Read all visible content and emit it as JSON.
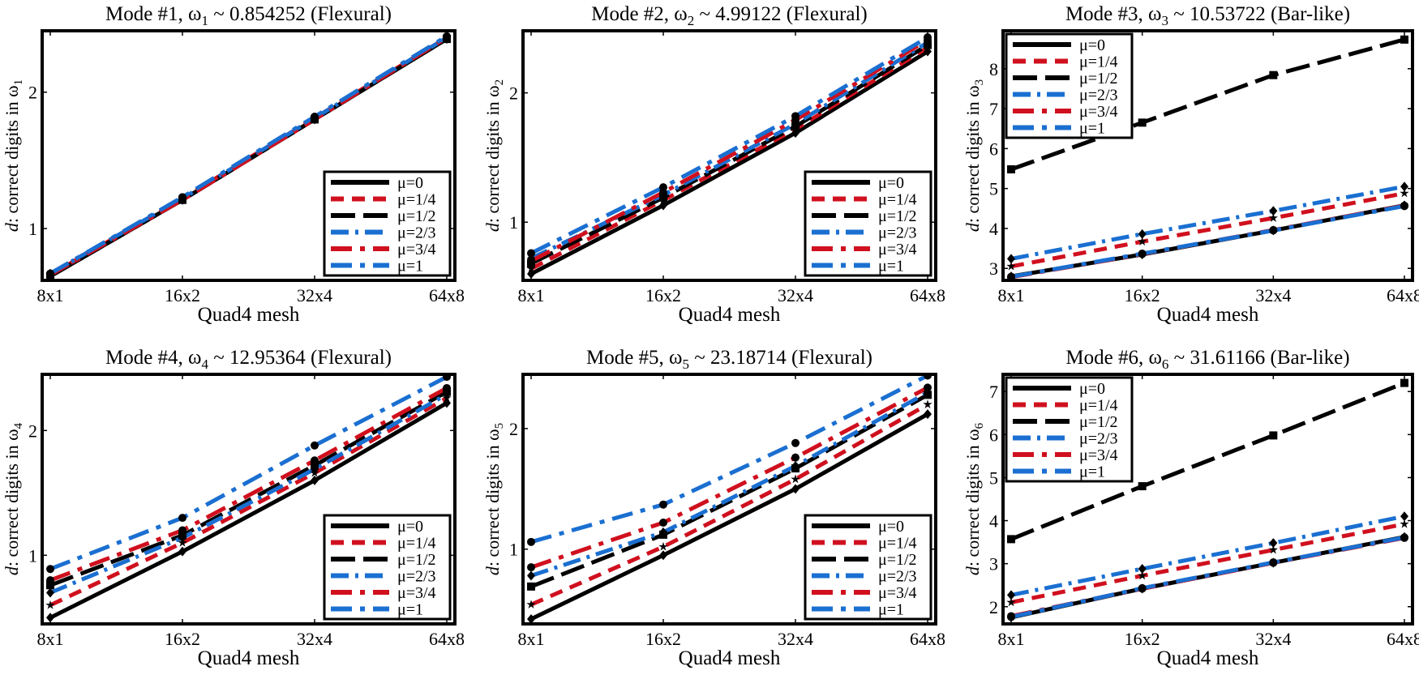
{
  "colors": {
    "black": "#000000",
    "red": "#d0101e",
    "blue": "#1a6fd1"
  },
  "legend_labels": [
    "μ=0",
    "μ=1/4",
    "μ=1/2",
    "μ=2/3",
    "μ=3/4",
    "μ=1"
  ],
  "xlabel": "Quad4 mesh",
  "ylabel_prefix": "d",
  "ylabel_text": ": correct digits in ω",
  "chart_data": [
    {
      "type": "line",
      "title_pre": "Mode #1, ω",
      "title_sub": "1",
      "title_post": " ~ 0.854252 (Flexural)",
      "ylabel_sub": "1",
      "categories": [
        "8x1",
        "16x2",
        "32x4",
        "64x8"
      ],
      "ylim": [
        0.62,
        2.45
      ],
      "yticks": [
        1,
        2
      ],
      "legend_position": "bottom-right",
      "series": [
        {
          "name": "μ=0",
          "values": [
            0.65,
            1.21,
            1.8,
            2.39
          ]
        },
        {
          "name": "μ=1/4",
          "values": [
            0.66,
            1.22,
            1.81,
            2.4
          ]
        },
        {
          "name": "μ=1/2",
          "values": [
            0.65,
            1.21,
            1.8,
            2.39
          ]
        },
        {
          "name": "μ=2/3",
          "values": [
            0.67,
            1.22,
            1.81,
            2.4
          ]
        },
        {
          "name": "μ=3/4",
          "values": [
            0.66,
            1.21,
            1.8,
            2.4
          ]
        },
        {
          "name": "μ=1",
          "values": [
            0.67,
            1.23,
            1.82,
            2.41
          ]
        }
      ]
    },
    {
      "type": "line",
      "title_pre": "Mode #2, ω",
      "title_sub": "2",
      "title_post": " ~ 4.99122 (Flexural)",
      "ylabel_sub": "2",
      "categories": [
        "8x1",
        "16x2",
        "32x4",
        "64x8"
      ],
      "ylim": [
        0.55,
        2.48
      ],
      "yticks": [
        1,
        2
      ],
      "legend_position": "bottom-right",
      "series": [
        {
          "name": "μ=0",
          "values": [
            0.6,
            1.13,
            1.69,
            2.32
          ]
        },
        {
          "name": "μ=1/4",
          "values": [
            0.64,
            1.17,
            1.72,
            2.35
          ]
        },
        {
          "name": "μ=1/2",
          "values": [
            0.68,
            1.19,
            1.74,
            2.37
          ]
        },
        {
          "name": "μ=2/3",
          "values": [
            0.72,
            1.21,
            1.76,
            2.39
          ]
        },
        {
          "name": "μ=3/4",
          "values": [
            0.7,
            1.23,
            1.79,
            2.41
          ]
        },
        {
          "name": "μ=1",
          "values": [
            0.76,
            1.27,
            1.82,
            2.43
          ]
        }
      ]
    },
    {
      "type": "line",
      "title_pre": "Mode #3, ω",
      "title_sub": "3",
      "title_post": " ~ 10.53722 (Bar-like)",
      "ylabel_sub": "3",
      "categories": [
        "8x1",
        "16x2",
        "32x4",
        "64x8"
      ],
      "ylim": [
        2.7,
        8.95
      ],
      "yticks": [
        3,
        4,
        5,
        6,
        7,
        8
      ],
      "legend_position": "top-left",
      "series": [
        {
          "name": "μ=0",
          "values": [
            2.8,
            3.35,
            3.95,
            4.58
          ]
        },
        {
          "name": "μ=1/4",
          "values": [
            3.05,
            3.67,
            4.26,
            4.88
          ]
        },
        {
          "name": "μ=1/2",
          "values": [
            5.48,
            6.65,
            7.84,
            8.73
          ]
        },
        {
          "name": "μ=2/3",
          "values": [
            3.24,
            3.86,
            4.44,
            5.05
          ]
        },
        {
          "name": "μ=3/4",
          "values": [
            2.78,
            3.36,
            3.96,
            4.57
          ]
        },
        {
          "name": "μ=1",
          "values": [
            2.79,
            3.37,
            3.95,
            4.56
          ]
        }
      ]
    },
    {
      "type": "line",
      "title_pre": "Mode #4, ω",
      "title_sub": "4",
      "title_post": " ~ 12.95364 (Flexural)",
      "ylabel_sub": "4",
      "categories": [
        "8x1",
        "16x2",
        "32x4",
        "64x8"
      ],
      "ylim": [
        0.45,
        2.45
      ],
      "yticks": [
        1,
        2
      ],
      "legend_position": "bottom-right",
      "series": [
        {
          "name": "μ=0",
          "values": [
            0.5,
            1.03,
            1.6,
            2.22
          ]
        },
        {
          "name": "μ=1/4",
          "values": [
            0.6,
            1.1,
            1.66,
            2.26
          ]
        },
        {
          "name": "μ=1/2",
          "values": [
            0.76,
            1.16,
            1.72,
            2.31
          ]
        },
        {
          "name": "μ=2/3",
          "values": [
            0.7,
            1.14,
            1.69,
            2.29
          ]
        },
        {
          "name": "μ=3/4",
          "values": [
            0.8,
            1.2,
            1.76,
            2.34
          ]
        },
        {
          "name": "μ=1",
          "values": [
            0.89,
            1.3,
            1.88,
            2.43
          ]
        }
      ]
    },
    {
      "type": "line",
      "title_pre": "Mode #5, ω",
      "title_sub": "5",
      "title_post": " ~ 23.18714  (Flexural)",
      "ylabel_sub": "5",
      "categories": [
        "8x1",
        "16x2",
        "32x4",
        "64x8"
      ],
      "ylim": [
        0.38,
        2.45
      ],
      "yticks": [
        1,
        2
      ],
      "legend_position": "bottom-right",
      "series": [
        {
          "name": "μ=0",
          "values": [
            0.42,
            0.95,
            1.5,
            2.12
          ]
        },
        {
          "name": "μ=1/4",
          "values": [
            0.54,
            1.02,
            1.58,
            2.2
          ]
        },
        {
          "name": "μ=1/2",
          "values": [
            0.69,
            1.12,
            1.67,
            2.28
          ]
        },
        {
          "name": "μ=2/3",
          "values": [
            0.78,
            1.14,
            1.69,
            2.3
          ]
        },
        {
          "name": "μ=3/4",
          "values": [
            0.85,
            1.22,
            1.76,
            2.34
          ]
        },
        {
          "name": "μ=1",
          "values": [
            1.06,
            1.37,
            1.88,
            2.44
          ]
        }
      ]
    },
    {
      "type": "line",
      "title_pre": "Mode #6, ω",
      "title_sub": "6",
      "title_post": " ~ 31.61166  (Bar-like)",
      "ylabel_sub": "6",
      "categories": [
        "8x1",
        "16x2",
        "32x4",
        "64x8"
      ],
      "ylim": [
        1.6,
        7.4
      ],
      "yticks": [
        2,
        3,
        4,
        5,
        6,
        7
      ],
      "legend_position": "top-left",
      "series": [
        {
          "name": "μ=0",
          "values": [
            1.75,
            2.42,
            3.02,
            3.62
          ]
        },
        {
          "name": "μ=1/4",
          "values": [
            2.1,
            2.72,
            3.32,
            3.92
          ]
        },
        {
          "name": "μ=1/2",
          "values": [
            3.57,
            4.8,
            5.98,
            7.2
          ]
        },
        {
          "name": "μ=2/3",
          "values": [
            2.27,
            2.88,
            3.48,
            4.1
          ]
        },
        {
          "name": "μ=3/4",
          "values": [
            1.78,
            2.42,
            3.02,
            3.6
          ]
        },
        {
          "name": "μ=1",
          "values": [
            1.76,
            2.43,
            3.03,
            3.61
          ]
        }
      ]
    }
  ]
}
